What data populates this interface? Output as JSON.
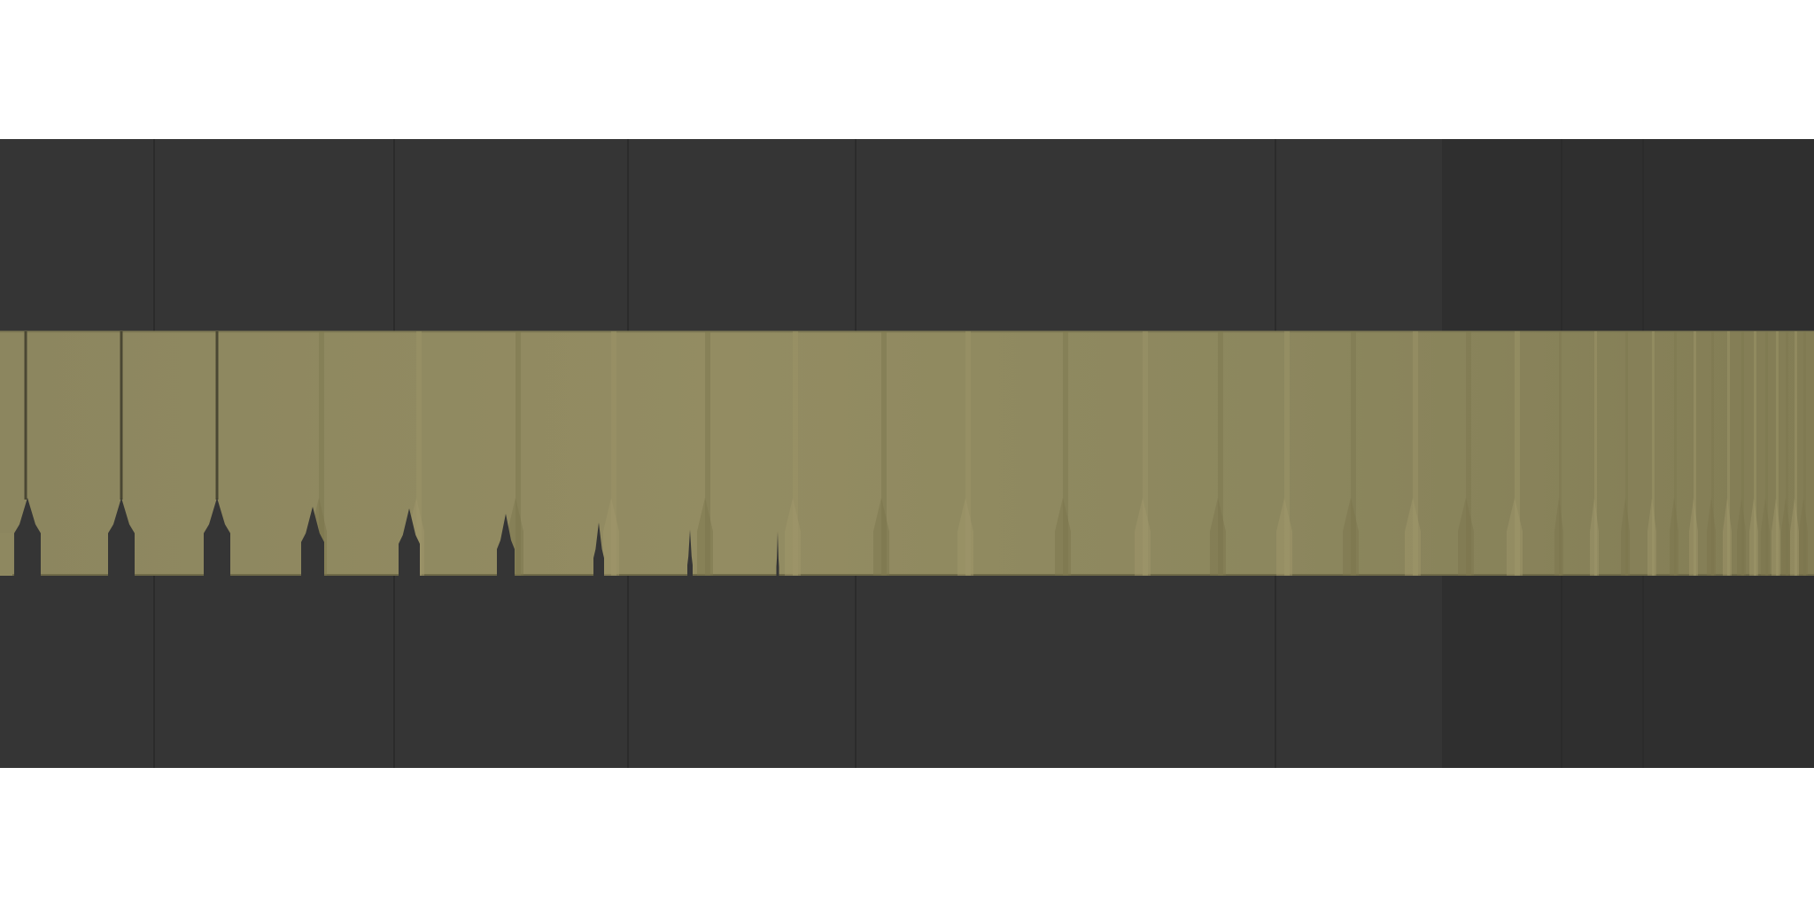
{
  "colors": {
    "page_background": "#ffffff",
    "dark_panel": "#353535",
    "dark_panel_alt": "#2e2e2e",
    "olive_band": "#8e8860",
    "olive_band_light": "#938c62",
    "olive_edge": "#7d774f",
    "notch_fill": "#353535"
  },
  "design": {
    "description_free": true
  }
}
